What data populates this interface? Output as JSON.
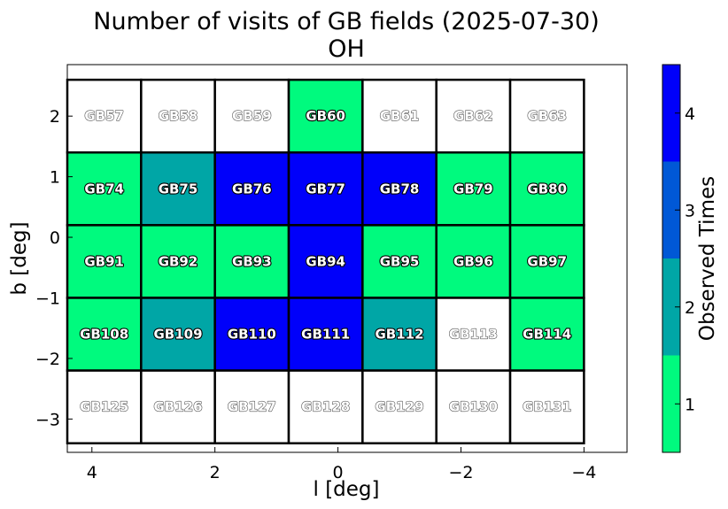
{
  "chart_data": {
    "type": "heatmap",
    "title": "Number of visits of GB fields (2025-07-30)",
    "subtitle": "OH",
    "xlabel": "l [deg]",
    "ylabel": "b [deg]",
    "xlim": [
      4.4,
      -4.7
    ],
    "ylim": [
      -3.55,
      2.85
    ],
    "x_ticks": [
      4,
      2,
      0,
      -2,
      -4
    ],
    "x_tick_labels": [
      "4",
      "2",
      "0",
      "−2",
      "−4"
    ],
    "y_ticks": [
      2,
      1,
      0,
      -1,
      -2,
      -3
    ],
    "y_tick_labels": [
      "2",
      "1",
      "0",
      "−1",
      "−2",
      "−3"
    ],
    "grid": false,
    "column_centers_l": [
      3.8,
      2.6,
      1.4,
      0.2,
      -1.0,
      -2.2,
      -3.4
    ],
    "row_centers_b": [
      2.0,
      0.8,
      -0.4,
      -1.6,
      -2.8
    ],
    "cell_width_deg": 1.2,
    "cell_height_deg": 1.2,
    "rows": [
      [
        {
          "name": "GB57",
          "visits": 0
        },
        {
          "name": "GB58",
          "visits": 0
        },
        {
          "name": "GB59",
          "visits": 0
        },
        {
          "name": "GB60",
          "visits": 1
        },
        {
          "name": "GB61",
          "visits": 0
        },
        {
          "name": "GB62",
          "visits": 0
        },
        {
          "name": "GB63",
          "visits": 0
        }
      ],
      [
        {
          "name": "GB74",
          "visits": 1
        },
        {
          "name": "GB75",
          "visits": 2
        },
        {
          "name": "GB76",
          "visits": 4
        },
        {
          "name": "GB77",
          "visits": 4
        },
        {
          "name": "GB78",
          "visits": 4
        },
        {
          "name": "GB79",
          "visits": 1
        },
        {
          "name": "GB80",
          "visits": 1
        }
      ],
      [
        {
          "name": "GB91",
          "visits": 1
        },
        {
          "name": "GB92",
          "visits": 1
        },
        {
          "name": "GB93",
          "visits": 1
        },
        {
          "name": "GB94",
          "visits": 4
        },
        {
          "name": "GB95",
          "visits": 1
        },
        {
          "name": "GB96",
          "visits": 1
        },
        {
          "name": "GB97",
          "visits": 1
        }
      ],
      [
        {
          "name": "GB108",
          "visits": 1
        },
        {
          "name": "GB109",
          "visits": 2
        },
        {
          "name": "GB110",
          "visits": 4
        },
        {
          "name": "GB111",
          "visits": 4
        },
        {
          "name": "GB112",
          "visits": 2
        },
        {
          "name": "GB113",
          "visits": 0
        },
        {
          "name": "GB114",
          "visits": 1
        }
      ],
      [
        {
          "name": "GB125",
          "visits": 0
        },
        {
          "name": "GB126",
          "visits": 0
        },
        {
          "name": "GB127",
          "visits": 0
        },
        {
          "name": "GB128",
          "visits": 0
        },
        {
          "name": "GB129",
          "visits": 0
        },
        {
          "name": "GB130",
          "visits": 0
        },
        {
          "name": "GB131",
          "visits": 0
        }
      ]
    ],
    "colorbar": {
      "label": "Observed Times",
      "range": [
        0.5,
        4.5
      ],
      "levels": [
        1,
        2,
        3,
        4
      ],
      "tick_labels": [
        "1",
        "2",
        "3",
        "4"
      ],
      "colors": [
        "#00fa7e",
        "#00a6a6",
        "#0058d6",
        "#0000fa"
      ],
      "zero_color": "#ffffff"
    }
  }
}
